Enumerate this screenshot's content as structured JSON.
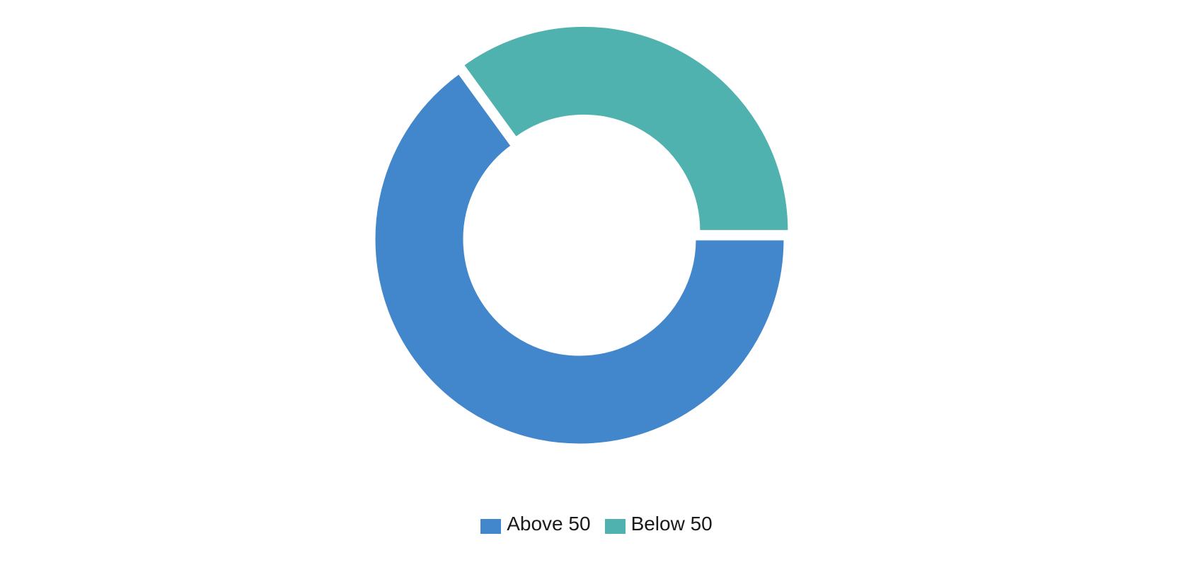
{
  "chart_data": {
    "type": "pie",
    "variant": "donut",
    "title": "",
    "categories": [
      "Above 50",
      "Below 50"
    ],
    "values": [
      65,
      35
    ],
    "colors": [
      "#4286cb",
      "#50b2ae"
    ],
    "legend_position": "bottom-center",
    "grid": false
  },
  "legend": {
    "items": [
      {
        "label": "Above 50",
        "color": "#4286cb"
      },
      {
        "label": "Below 50",
        "color": "#50b2ae"
      }
    ]
  }
}
